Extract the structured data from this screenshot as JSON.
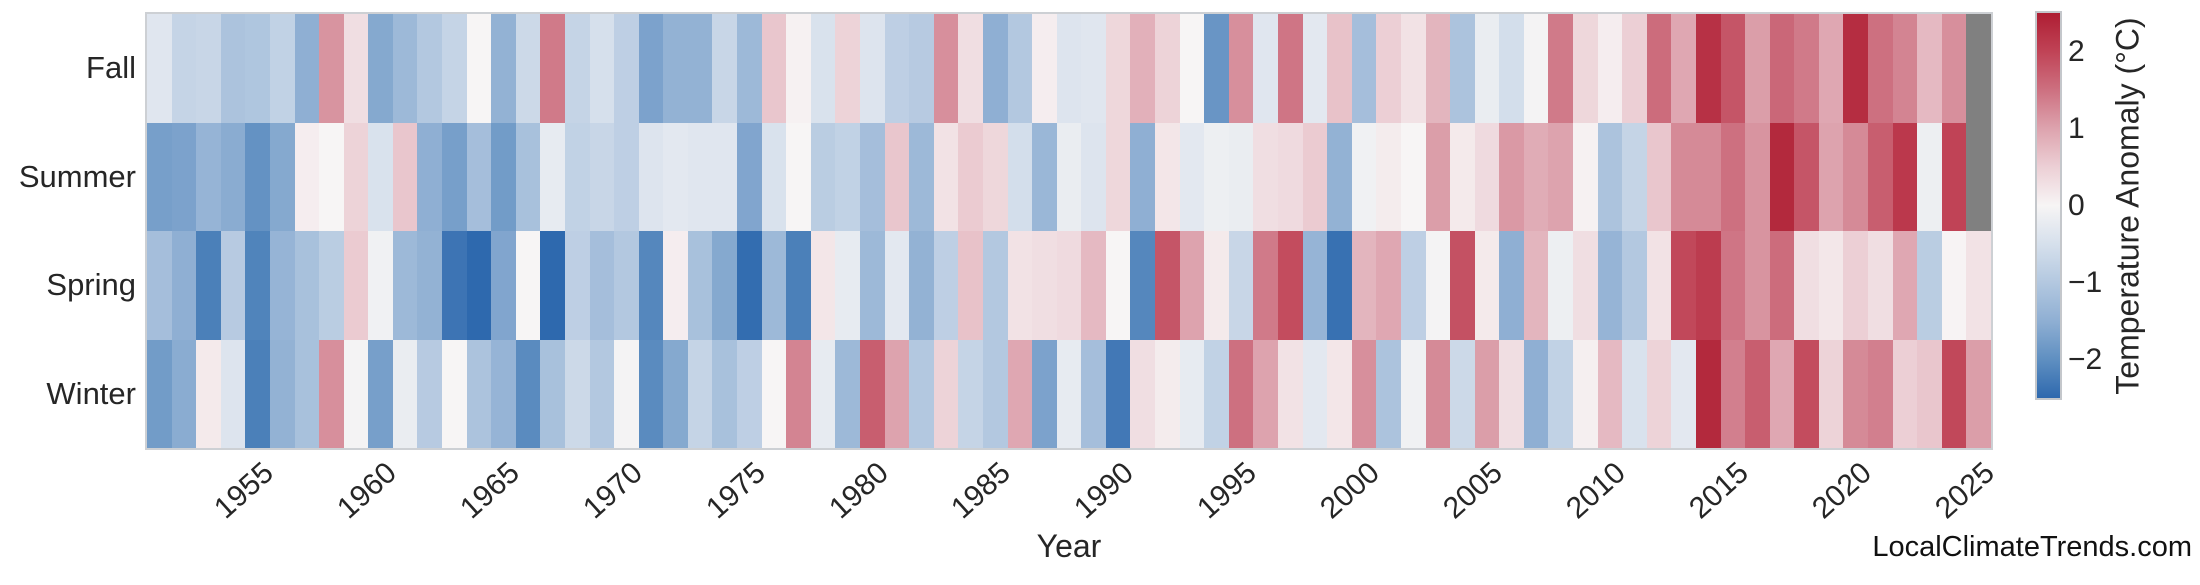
{
  "figure": {
    "xlabel": "Year",
    "watermark": "LocalClimateTrends.com"
  },
  "chart_data": {
    "type": "heatmap",
    "title": "",
    "xlabel": "Year",
    "x": [
      1951,
      1952,
      1953,
      1954,
      1955,
      1956,
      1957,
      1958,
      1959,
      1960,
      1961,
      1962,
      1963,
      1964,
      1965,
      1966,
      1967,
      1968,
      1969,
      1970,
      1971,
      1972,
      1973,
      1974,
      1975,
      1976,
      1977,
      1978,
      1979,
      1980,
      1981,
      1982,
      1983,
      1984,
      1985,
      1986,
      1987,
      1988,
      1989,
      1990,
      1991,
      1992,
      1993,
      1994,
      1995,
      1996,
      1997,
      1998,
      1999,
      2000,
      2001,
      2002,
      2003,
      2004,
      2005,
      2006,
      2007,
      2008,
      2009,
      2010,
      2011,
      2012,
      2013,
      2014,
      2015,
      2016,
      2017,
      2018,
      2019,
      2020,
      2021,
      2022,
      2023,
      2024,
      2025
    ],
    "x_tick_labels": [
      "1955",
      "1960",
      "1965",
      "1970",
      "1975",
      "1980",
      "1985",
      "1990",
      "1995",
      "2000",
      "2005",
      "2010",
      "2015",
      "2020",
      "2025"
    ],
    "x_tick_years": [
      1955,
      1960,
      1965,
      1970,
      1975,
      1980,
      1985,
      1990,
      1995,
      2000,
      2005,
      2010,
      2015,
      2020,
      2025
    ],
    "rows": [
      "Fall",
      "Summer",
      "Spring",
      "Winter"
    ],
    "series": [
      {
        "name": "Fall",
        "values": [
          -0.35,
          -0.75,
          -0.7,
          -1.1,
          -1.05,
          -0.8,
          -1.5,
          1.15,
          0.3,
          -1.6,
          -1.3,
          -1.0,
          -0.75,
          0.0,
          -1.45,
          -0.65,
          1.4,
          -0.75,
          -0.5,
          -0.85,
          -1.7,
          -1.45,
          -1.45,
          -0.7,
          -1.3,
          0.6,
          0.05,
          -0.45,
          0.45,
          -0.4,
          -0.85,
          -0.95,
          1.2,
          0.3,
          -1.5,
          -1.0,
          0.1,
          -0.4,
          -0.35,
          0.4,
          0.85,
          0.45,
          0.0,
          -1.9,
          1.2,
          -0.35,
          1.45,
          -0.3,
          0.65,
          -1.2,
          0.5,
          0.25,
          0.8,
          -1.1,
          -0.2,
          -0.55,
          -0.05,
          1.4,
          0.4,
          0.1,
          0.5,
          1.55,
          0.95,
          2.25,
          1.8,
          1.05,
          1.6,
          1.4,
          0.95,
          2.3,
          1.5,
          1.3,
          0.75,
          1.2,
          null
        ]
      },
      {
        "name": "Summer",
        "values": [
          -1.75,
          -1.7,
          -1.4,
          -1.55,
          -1.95,
          -1.6,
          0.1,
          0.0,
          0.45,
          -0.45,
          0.6,
          -1.5,
          -1.75,
          -1.2,
          -1.8,
          -1.15,
          -0.25,
          -0.8,
          -0.7,
          -0.85,
          -0.4,
          -0.3,
          -0.35,
          -0.35,
          -1.65,
          -0.45,
          0.0,
          -0.9,
          -0.8,
          -1.2,
          0.6,
          -1.3,
          0.25,
          0.55,
          0.4,
          -0.55,
          -1.35,
          -0.2,
          -0.4,
          0.4,
          -1.5,
          0.2,
          -0.3,
          -0.15,
          -0.2,
          0.3,
          0.35,
          0.55,
          -1.45,
          -0.1,
          0.12,
          0.0,
          1.05,
          0.15,
          0.35,
          1.1,
          0.9,
          1.0,
          0.05,
          -1.1,
          -0.75,
          0.6,
          1.25,
          1.25,
          1.5,
          1.15,
          2.35,
          1.8,
          1.0,
          1.25,
          1.7,
          2.15,
          -0.15,
          2.0,
          null
        ]
      },
      {
        "name": "Spring",
        "values": [
          -1.2,
          -1.5,
          -2.2,
          -0.95,
          -2.15,
          -1.4,
          -1.15,
          -0.9,
          0.55,
          -0.1,
          -1.3,
          -1.45,
          -2.35,
          -2.5,
          -1.65,
          0.0,
          -2.5,
          -0.85,
          -1.2,
          -1.0,
          -2.1,
          0.1,
          -1.15,
          -1.6,
          -2.45,
          -1.3,
          -2.2,
          0.2,
          -0.25,
          -1.3,
          -0.3,
          -1.45,
          -0.85,
          0.65,
          -1.0,
          0.25,
          0.3,
          0.35,
          0.75,
          0.0,
          -2.1,
          1.8,
          1.0,
          0.15,
          -0.7,
          1.4,
          1.9,
          -1.4,
          -2.4,
          0.8,
          0.95,
          -0.85,
          -0.05,
          1.85,
          0.15,
          -1.5,
          0.8,
          -0.15,
          0.3,
          -1.4,
          -1.0,
          0.25,
          1.95,
          2.1,
          1.45,
          1.15,
          1.55,
          0.3,
          0.18,
          0.5,
          0.3,
          0.95,
          -0.9,
          0.02,
          0.25
        ]
      },
      {
        "name": "Winter",
        "values": [
          -1.8,
          -1.55,
          0.15,
          -0.4,
          -2.2,
          -1.45,
          -1.15,
          1.2,
          -0.05,
          -1.75,
          -0.2,
          -0.95,
          0.0,
          -1.1,
          -1.4,
          -2.05,
          -1.15,
          -0.65,
          -1.0,
          -0.05,
          -2.05,
          -1.6,
          -0.75,
          -1.15,
          -0.85,
          0.0,
          1.3,
          -0.25,
          -1.3,
          1.7,
          1.0,
          -1.0,
          0.45,
          -0.75,
          -1.0,
          0.95,
          -1.7,
          -0.25,
          -1.2,
          -2.3,
          0.3,
          0.12,
          -0.25,
          -0.8,
          1.5,
          1.0,
          0.25,
          -0.3,
          0.2,
          1.2,
          -1.1,
          -0.1,
          1.25,
          -0.65,
          1.05,
          0.3,
          -1.5,
          -0.8,
          0.08,
          0.75,
          -0.45,
          0.45,
          -0.3,
          2.35,
          1.35,
          1.7,
          0.95,
          1.9,
          0.45,
          1.25,
          1.35,
          0.5,
          0.6,
          1.95,
          1.05
        ]
      }
    ],
    "colorbar": {
      "label": "Temperature Anomaly (°C)",
      "ticks": [
        "2",
        "1",
        "0",
        "−1",
        "−2"
      ],
      "tick_values": [
        2,
        1,
        0,
        -1,
        -2
      ],
      "vmin": -2.5,
      "vmax": 2.5
    },
    "colormap": {
      "missing_color": "#808080",
      "stops": [
        {
          "value": -2.5,
          "color": "#2e69ae"
        },
        {
          "value": -2.0,
          "color": "#5f8fc1"
        },
        {
          "value": -1.5,
          "color": "#8fafd3"
        },
        {
          "value": -1.0,
          "color": "#b3c8e0"
        },
        {
          "value": -0.5,
          "color": "#d6e0ec"
        },
        {
          "value": 0.0,
          "color": "#f7f5f5"
        },
        {
          "value": 0.5,
          "color": "#eccfd5"
        },
        {
          "value": 1.0,
          "color": "#dda3ae"
        },
        {
          "value": 1.5,
          "color": "#cd7080"
        },
        {
          "value": 2.0,
          "color": "#c04356"
        },
        {
          "value": 2.5,
          "color": "#ae1e33"
        }
      ]
    },
    "grid": false,
    "legend_position": "right-colorbar"
  }
}
